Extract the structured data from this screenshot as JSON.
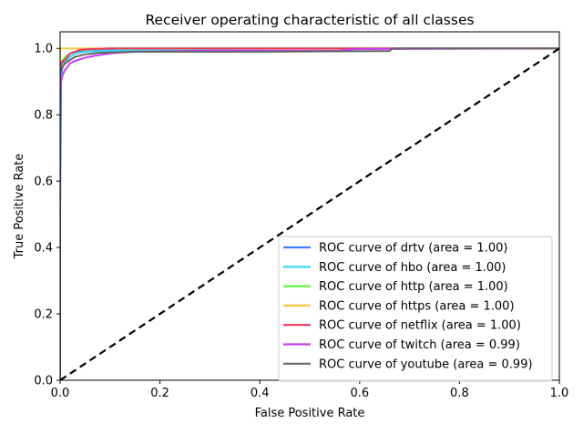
{
  "chart_data": {
    "type": "line",
    "title": "Receiver operating characteristic of all classes",
    "xlabel": "False Positive Rate",
    "ylabel": "True Positive Rate",
    "xlim": [
      0.0,
      1.0
    ],
    "ylim": [
      0.0,
      1.05
    ],
    "xticks": [
      "0.0",
      "0.2",
      "0.4",
      "0.6",
      "0.8",
      "1.0"
    ],
    "yticks": [
      "0.0",
      "0.2",
      "0.4",
      "0.6",
      "0.8",
      "1.0"
    ],
    "grid": false,
    "legend_position": "lower-right",
    "series": [
      {
        "name": "ROC curve of drtv (area = 1.00)",
        "color": "#3f7fff",
        "x": [
          0.0,
          0.0,
          0.002,
          0.005,
          0.01,
          0.02,
          0.03,
          0.05,
          0.1,
          0.3,
          1.0
        ],
        "y": [
          0.0,
          0.49,
          0.9,
          0.95,
          0.97,
          0.985,
          0.99,
          0.995,
          0.998,
          1.0,
          1.0
        ]
      },
      {
        "name": "ROC curve of hbo (area = 1.00)",
        "color": "#35d6f5",
        "x": [
          0.0,
          0.0,
          0.002,
          0.005,
          0.01,
          0.02,
          0.03,
          0.05,
          0.15,
          0.5,
          1.0
        ],
        "y": [
          0.0,
          0.9,
          0.93,
          0.95,
          0.96,
          0.975,
          0.985,
          0.99,
          0.995,
          1.0,
          1.0
        ]
      },
      {
        "name": "ROC curve of http (area = 1.00)",
        "color": "#5ef542",
        "x": [
          0.0,
          0.0,
          0.003,
          0.01,
          0.02,
          0.04,
          0.1,
          1.0
        ],
        "y": [
          0.0,
          0.93,
          0.96,
          0.975,
          0.985,
          0.995,
          1.0,
          1.0
        ]
      },
      {
        "name": "ROC curve of https (area = 1.00)",
        "color": "#ffc43d",
        "x": [
          0.0,
          0.0,
          0.002,
          1.0
        ],
        "y": [
          0.0,
          0.99,
          1.0,
          1.0
        ]
      },
      {
        "name": "ROC curve of netflix (area = 1.00)",
        "color": "#f0325a",
        "x": [
          0.0,
          0.0,
          0.002,
          0.005,
          0.01,
          0.015,
          0.02,
          0.03,
          0.04,
          0.06,
          0.1,
          1.0
        ],
        "y": [
          0.0,
          0.93,
          0.955,
          0.962,
          0.965,
          0.975,
          0.985,
          0.99,
          0.996,
          0.998,
          1.0,
          1.0
        ]
      },
      {
        "name": "ROC curve of twitch (area = 0.99)",
        "color": "#c53cf5",
        "x": [
          0.0,
          0.0,
          0.002,
          0.005,
          0.01,
          0.015,
          0.02,
          0.03,
          0.05,
          0.07,
          0.1,
          0.15,
          0.3,
          0.56,
          0.57,
          0.6,
          1.0
        ],
        "y": [
          0.0,
          0.86,
          0.9,
          0.92,
          0.935,
          0.945,
          0.955,
          0.962,
          0.972,
          0.978,
          0.985,
          0.99,
          0.993,
          0.993,
          0.996,
          0.998,
          1.0
        ]
      },
      {
        "name": "ROC curve of youtube (area = 0.99)",
        "color": "#666666",
        "x": [
          0.0,
          0.0,
          0.003,
          0.01,
          0.02,
          0.03,
          0.05,
          0.08,
          0.15,
          0.4,
          0.66,
          0.665,
          1.0
        ],
        "y": [
          0.0,
          0.92,
          0.94,
          0.955,
          0.965,
          0.975,
          0.982,
          0.987,
          0.99,
          0.99,
          0.992,
          1.0,
          1.0
        ]
      }
    ],
    "reference_line": {
      "x": [
        0.0,
        1.0
      ],
      "y": [
        0.0,
        1.0
      ],
      "color": "#000000",
      "style": "dashed"
    }
  }
}
